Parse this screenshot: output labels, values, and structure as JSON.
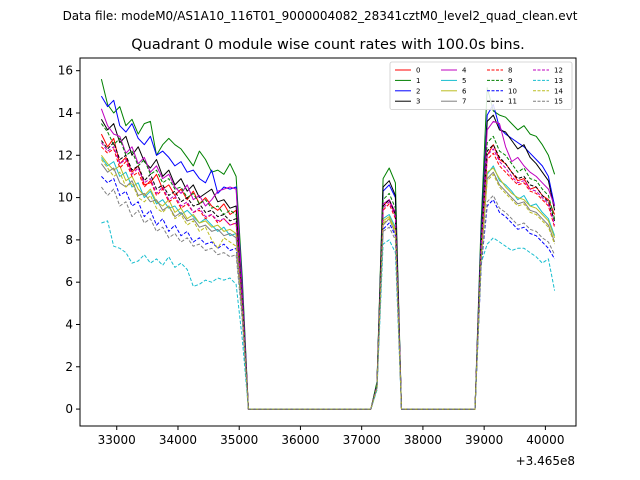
{
  "figure": {
    "suptitle": "Data file: modeM0/AS1A10_116T01_9000004082_28341cztM0_level2_quad_clean.evt"
  },
  "chart_data": {
    "type": "line",
    "title": "Quadrant 0 module wise count rates with 100.0s bins.",
    "xlabel": "",
    "ylabel": "",
    "x_offset_label": "+3.465e8",
    "xlim": [
      32400,
      40500
    ],
    "ylim": [
      -0.8,
      16.6
    ],
    "xticks": [
      33000,
      34000,
      35000,
      36000,
      37000,
      38000,
      39000,
      40000
    ],
    "yticks": [
      0,
      2,
      4,
      6,
      8,
      10,
      12,
      14,
      16
    ],
    "grid": false,
    "legend_location": "top-right",
    "legend_columns": 4,
    "x": [
      32750,
      32850,
      32950,
      33050,
      33150,
      33250,
      33350,
      33450,
      33550,
      33650,
      33750,
      33850,
      33950,
      34050,
      34150,
      34250,
      34350,
      34450,
      34550,
      34650,
      34750,
      34850,
      34950,
      35050,
      35150,
      35250,
      37150,
      37250,
      37350,
      37450,
      37550,
      37650,
      37750,
      38850,
      38950,
      39050,
      39150,
      39250,
      39350,
      39450,
      39550,
      39650,
      39750,
      39850,
      39950,
      40050,
      40150
    ],
    "series": [
      {
        "name": "0",
        "color": "#ff0000",
        "dash": "solid",
        "values": [
          13.0,
          12.4,
          12.8,
          11.6,
          11.9,
          11.2,
          11.5,
          10.6,
          10.7,
          11.1,
          10.4,
          10.6,
          10.1,
          10.4,
          9.9,
          10.3,
          9.7,
          10.0,
          9.6,
          9.4,
          9.7,
          9.2,
          9.4,
          5.5,
          0.0,
          0.0,
          0.0,
          1.2,
          9.6,
          9.9,
          9.2,
          0.0,
          0.0,
          0.0,
          7.7,
          12.0,
          12.5,
          11.8,
          11.6,
          11.2,
          10.8,
          10.9,
          10.4,
          10.5,
          10.1,
          9.9,
          9.2
        ]
      },
      {
        "name": "1",
        "color": "#008000",
        "dash": "solid",
        "values": [
          15.6,
          14.4,
          14.0,
          14.3,
          13.4,
          13.7,
          13.0,
          13.5,
          13.6,
          12.0,
          12.5,
          12.8,
          12.5,
          12.3,
          11.9,
          11.5,
          12.2,
          11.8,
          11.2,
          11.3,
          11.1,
          11.6,
          11.0,
          6.2,
          0.0,
          0.0,
          0.0,
          1.3,
          10.9,
          11.4,
          10.7,
          0.0,
          0.0,
          0.0,
          8.8,
          15.2,
          14.1,
          13.9,
          13.8,
          13.5,
          13.2,
          13.4,
          13.0,
          12.9,
          12.5,
          12.0,
          11.1
        ]
      },
      {
        "name": "2",
        "color": "#0000ff",
        "dash": "solid",
        "values": [
          14.8,
          14.3,
          14.6,
          13.4,
          13.1,
          13.5,
          12.8,
          12.5,
          12.9,
          12.0,
          12.2,
          11.9,
          11.5,
          11.7,
          11.2,
          11.3,
          10.9,
          10.7,
          11.3,
          10.2,
          10.5,
          10.4,
          10.5,
          5.8,
          0.0,
          0.0,
          0.0,
          1.2,
          10.3,
          10.6,
          10.0,
          0.0,
          0.0,
          0.0,
          8.3,
          13.9,
          14.4,
          13.3,
          13.0,
          12.8,
          12.6,
          12.4,
          12.1,
          11.8,
          11.5,
          11.0,
          9.6
        ]
      },
      {
        "name": "3",
        "color": "#000000",
        "dash": "solid",
        "values": [
          13.7,
          13.2,
          13.5,
          12.6,
          12.9,
          12.0,
          12.4,
          11.7,
          11.4,
          11.8,
          11.0,
          11.3,
          10.6,
          10.9,
          10.3,
          10.6,
          10.0,
          10.2,
          10.4,
          9.8,
          9.9,
          9.5,
          9.6,
          5.4,
          0.0,
          0.0,
          0.0,
          1.2,
          10.5,
          10.8,
          10.1,
          0.0,
          0.0,
          0.0,
          8.0,
          13.6,
          13.9,
          13.2,
          13.1,
          12.7,
          12.3,
          12.5,
          11.9,
          11.6,
          11.2,
          10.8,
          9.4
        ]
      },
      {
        "name": "4",
        "color": "#bf00bf",
        "dash": "solid",
        "values": [
          14.2,
          13.4,
          13.0,
          12.9,
          12.1,
          12.4,
          11.6,
          11.9,
          11.2,
          11.5,
          10.9,
          11.1,
          10.5,
          10.2,
          10.6,
          9.9,
          10.1,
          9.6,
          9.9,
          10.3,
          10.4,
          10.5,
          10.4,
          5.6,
          0.0,
          0.0,
          0.0,
          1.1,
          9.7,
          9.9,
          9.3,
          0.0,
          0.0,
          0.0,
          7.9,
          13.2,
          13.6,
          13.5,
          12.4,
          11.7,
          11.9,
          11.5,
          11.2,
          11.0,
          10.7,
          10.4,
          9.6
        ]
      },
      {
        "name": "5",
        "color": "#17becf",
        "dash": "solid",
        "values": [
          11.9,
          11.5,
          11.7,
          11.0,
          11.2,
          10.5,
          10.7,
          10.0,
          10.3,
          9.7,
          9.9,
          9.5,
          9.6,
          9.2,
          9.4,
          9.1,
          8.8,
          9.0,
          8.7,
          8.4,
          8.6,
          8.2,
          8.3,
          4.8,
          0.0,
          0.0,
          0.0,
          1.1,
          9.0,
          9.2,
          8.6,
          0.0,
          0.0,
          0.0,
          7.2,
          11.1,
          11.5,
          10.8,
          10.6,
          10.3,
          9.9,
          10.1,
          9.6,
          9.7,
          9.3,
          9.0,
          8.2
        ]
      },
      {
        "name": "6",
        "color": "#bcbd22",
        "dash": "solid",
        "values": [
          12.0,
          11.6,
          11.3,
          11.5,
          10.8,
          11.0,
          10.4,
          10.1,
          10.4,
          9.8,
          9.6,
          9.9,
          9.3,
          9.5,
          9.0,
          9.2,
          8.8,
          8.9,
          8.6,
          8.7,
          8.4,
          8.5,
          8.3,
          4.9,
          0.0,
          0.0,
          0.0,
          1.1,
          8.9,
          9.1,
          8.5,
          0.0,
          0.0,
          0.0,
          7.3,
          11.2,
          11.4,
          10.9,
          10.5,
          10.2,
          10.0,
          9.9,
          9.6,
          9.5,
          9.2,
          8.9,
          8.1
        ]
      },
      {
        "name": "7",
        "color": "#7f7f7f",
        "dash": "solid",
        "values": [
          11.6,
          11.2,
          11.4,
          10.7,
          10.5,
          10.8,
          10.1,
          10.2,
          9.8,
          9.9,
          9.4,
          9.6,
          9.1,
          9.3,
          8.9,
          9.0,
          8.6,
          8.7,
          8.4,
          8.5,
          8.2,
          8.3,
          8.1,
          4.7,
          0.0,
          0.0,
          0.0,
          1.0,
          8.7,
          9.0,
          8.3,
          0.0,
          0.0,
          0.0,
          7.0,
          10.9,
          11.2,
          10.6,
          10.3,
          10.0,
          9.7,
          9.8,
          9.4,
          9.3,
          9.0,
          8.7,
          7.9
        ]
      },
      {
        "name": "8",
        "color": "#ff0000",
        "dash": "dashed",
        "values": [
          12.4,
          12.1,
          12.3,
          11.4,
          11.7,
          11.0,
          11.2,
          10.5,
          10.8,
          10.1,
          10.4,
          9.8,
          10.0,
          9.5,
          9.7,
          9.3,
          9.4,
          9.0,
          9.2,
          8.8,
          9.0,
          8.7,
          8.8,
          5.1,
          0.0,
          0.0,
          0.0,
          1.1,
          9.4,
          9.7,
          9.0,
          0.0,
          0.0,
          0.0,
          7.6,
          11.8,
          12.1,
          11.5,
          11.2,
          10.9,
          10.6,
          10.7,
          10.3,
          10.2,
          9.9,
          9.6,
          8.6
        ]
      },
      {
        "name": "9",
        "color": "#008000",
        "dash": "dashed",
        "values": [
          13.5,
          13.1,
          12.5,
          12.8,
          12.0,
          12.2,
          11.5,
          11.8,
          11.1,
          11.3,
          10.7,
          10.9,
          10.4,
          10.5,
          10.0,
          10.2,
          9.7,
          9.9,
          9.5,
          9.6,
          9.2,
          9.4,
          9.2,
          5.3,
          0.0,
          0.0,
          0.0,
          1.2,
          9.9,
          10.2,
          9.5,
          0.0,
          0.0,
          0.0,
          8.0,
          12.6,
          12.9,
          12.2,
          12.0,
          11.6,
          11.2,
          11.4,
          10.9,
          10.8,
          10.4,
          10.1,
          9.0
        ]
      },
      {
        "name": "10",
        "color": "#0000ff",
        "dash": "dashed",
        "values": [
          11.0,
          10.7,
          10.9,
          10.1,
          10.3,
          9.6,
          9.8,
          9.1,
          9.4,
          8.7,
          9.0,
          8.4,
          8.7,
          8.2,
          8.4,
          7.9,
          8.1,
          7.8,
          7.9,
          7.6,
          7.8,
          7.5,
          7.6,
          4.4,
          0.0,
          0.0,
          0.0,
          1.0,
          8.5,
          8.8,
          8.2,
          0.0,
          0.0,
          0.0,
          6.7,
          9.6,
          9.9,
          9.3,
          9.1,
          8.8,
          8.5,
          8.6,
          8.3,
          8.2,
          7.9,
          7.6,
          7.1
        ]
      },
      {
        "name": "11",
        "color": "#000000",
        "dash": "dashed",
        "values": [
          12.7,
          12.3,
          12.6,
          11.8,
          12.0,
          11.3,
          11.5,
          10.8,
          11.1,
          10.4,
          10.6,
          10.1,
          10.3,
          9.8,
          10.0,
          9.6,
          9.7,
          9.3,
          9.4,
          9.1,
          9.2,
          8.9,
          9.0,
          5.2,
          0.0,
          0.0,
          0.0,
          1.1,
          9.6,
          9.9,
          9.2,
          0.0,
          0.0,
          0.0,
          7.8,
          12.2,
          12.5,
          11.9,
          11.6,
          11.2,
          10.9,
          11.0,
          10.6,
          10.5,
          10.1,
          9.8,
          8.9
        ]
      },
      {
        "name": "12",
        "color": "#bf00bf",
        "dash": "dashed",
        "values": [
          12.6,
          12.2,
          12.4,
          11.6,
          11.8,
          11.1,
          11.4,
          10.7,
          10.9,
          10.2,
          10.5,
          9.9,
          10.1,
          9.6,
          9.8,
          9.3,
          9.5,
          9.1,
          9.2,
          8.9,
          9.0,
          8.7,
          8.8,
          5.1,
          0.0,
          0.0,
          0.0,
          1.1,
          9.5,
          9.8,
          9.1,
          0.0,
          0.0,
          0.0,
          7.7,
          12.0,
          12.3,
          11.7,
          11.4,
          11.0,
          10.7,
          10.8,
          10.4,
          10.3,
          10.0,
          9.7,
          8.7
        ]
      },
      {
        "name": "13",
        "color": "#17becf",
        "dash": "dashed",
        "values": [
          8.8,
          8.9,
          7.7,
          7.6,
          7.4,
          6.9,
          7.0,
          7.3,
          6.9,
          7.1,
          6.8,
          7.2,
          6.7,
          6.9,
          6.6,
          5.8,
          5.9,
          6.1,
          6.0,
          6.2,
          6.1,
          6.2,
          5.9,
          3.3,
          0.0,
          0.0,
          0.0,
          0.9,
          7.8,
          8.0,
          7.4,
          0.0,
          0.0,
          0.0,
          6.9,
          7.8,
          8.1,
          7.9,
          7.7,
          7.5,
          7.6,
          7.6,
          7.4,
          7.2,
          6.9,
          7.1,
          5.6
        ]
      },
      {
        "name": "14",
        "color": "#bcbd22",
        "dash": "dashed",
        "values": [
          11.8,
          11.4,
          11.0,
          11.2,
          10.5,
          10.7,
          10.0,
          9.8,
          10.1,
          9.5,
          9.3,
          9.6,
          9.0,
          9.2,
          8.7,
          8.9,
          8.4,
          8.6,
          8.0,
          7.6,
          8.1,
          7.9,
          7.7,
          4.5,
          0.0,
          0.0,
          0.0,
          1.0,
          8.8,
          9.0,
          8.4,
          0.0,
          0.0,
          0.0,
          7.1,
          10.8,
          11.1,
          10.5,
          10.2,
          9.9,
          9.6,
          9.7,
          9.3,
          9.2,
          8.9,
          8.6,
          7.8
        ]
      },
      {
        "name": "15",
        "color": "#7f7f7f",
        "dash": "dashed",
        "values": [
          10.5,
          10.1,
          10.4,
          9.6,
          9.8,
          9.1,
          9.4,
          8.8,
          9.0,
          8.4,
          8.6,
          8.1,
          8.3,
          7.9,
          8.1,
          7.7,
          7.8,
          7.5,
          7.6,
          7.3,
          7.4,
          7.2,
          7.3,
          4.2,
          0.0,
          0.0,
          0.0,
          1.0,
          8.4,
          8.6,
          8.0,
          0.0,
          0.0,
          0.0,
          6.8,
          9.8,
          10.1,
          9.5,
          9.3,
          9.0,
          8.7,
          8.8,
          8.5,
          8.4,
          8.1,
          7.9,
          7.3
        ]
      }
    ]
  }
}
